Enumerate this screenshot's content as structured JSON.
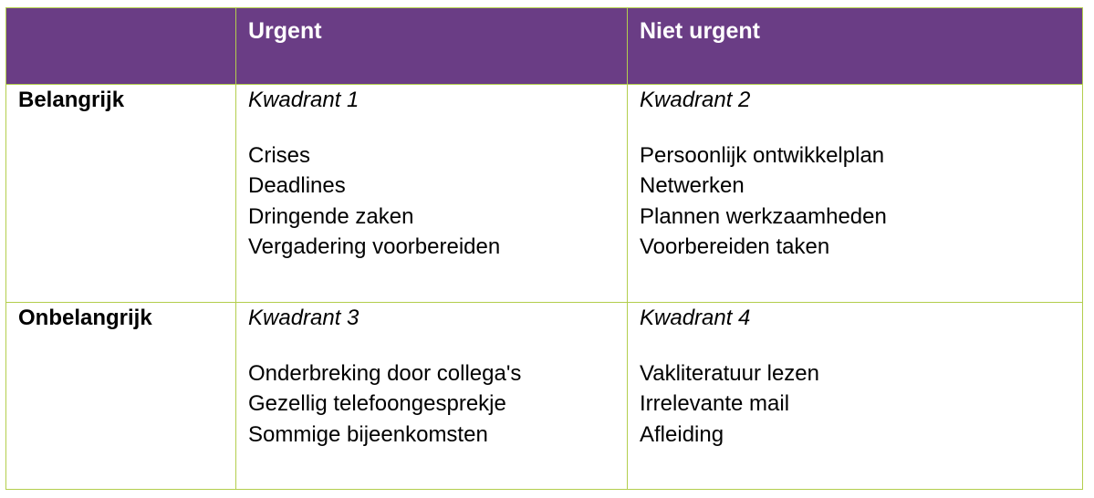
{
  "matrix_table": {
    "style": {
      "header_background": "#6a3d85",
      "header_text_color": "#ffffff",
      "border_color": "#b3ce4d",
      "body_text_color": "#000000"
    },
    "header": {
      "corner": "",
      "urgent": "Urgent",
      "niet_urgent": "Niet urgent"
    },
    "rows": [
      {
        "label": "Belangrijk",
        "q1": {
          "title": "Kwadrant 1",
          "items": [
            "Crises",
            "Deadlines",
            "Dringende zaken",
            "Vergadering voorbereiden"
          ]
        },
        "q2": {
          "title": "Kwadrant 2",
          "items": [
            "Persoonlijk ontwikkelplan",
            "Netwerken",
            "Plannen werkzaamheden",
            "Voorbereiden taken"
          ]
        }
      },
      {
        "label": "Onbelangrijk",
        "q3": {
          "title": "Kwadrant 3",
          "items": [
            "Onderbreking door collega's",
            "Gezellig telefoongesprekje",
            "Sommige bijeenkomsten"
          ]
        },
        "q4": {
          "title": "Kwadrant 4",
          "items": [
            "Vakliteratuur lezen",
            "Irrelevante mail",
            "Afleiding"
          ]
        }
      }
    ]
  }
}
